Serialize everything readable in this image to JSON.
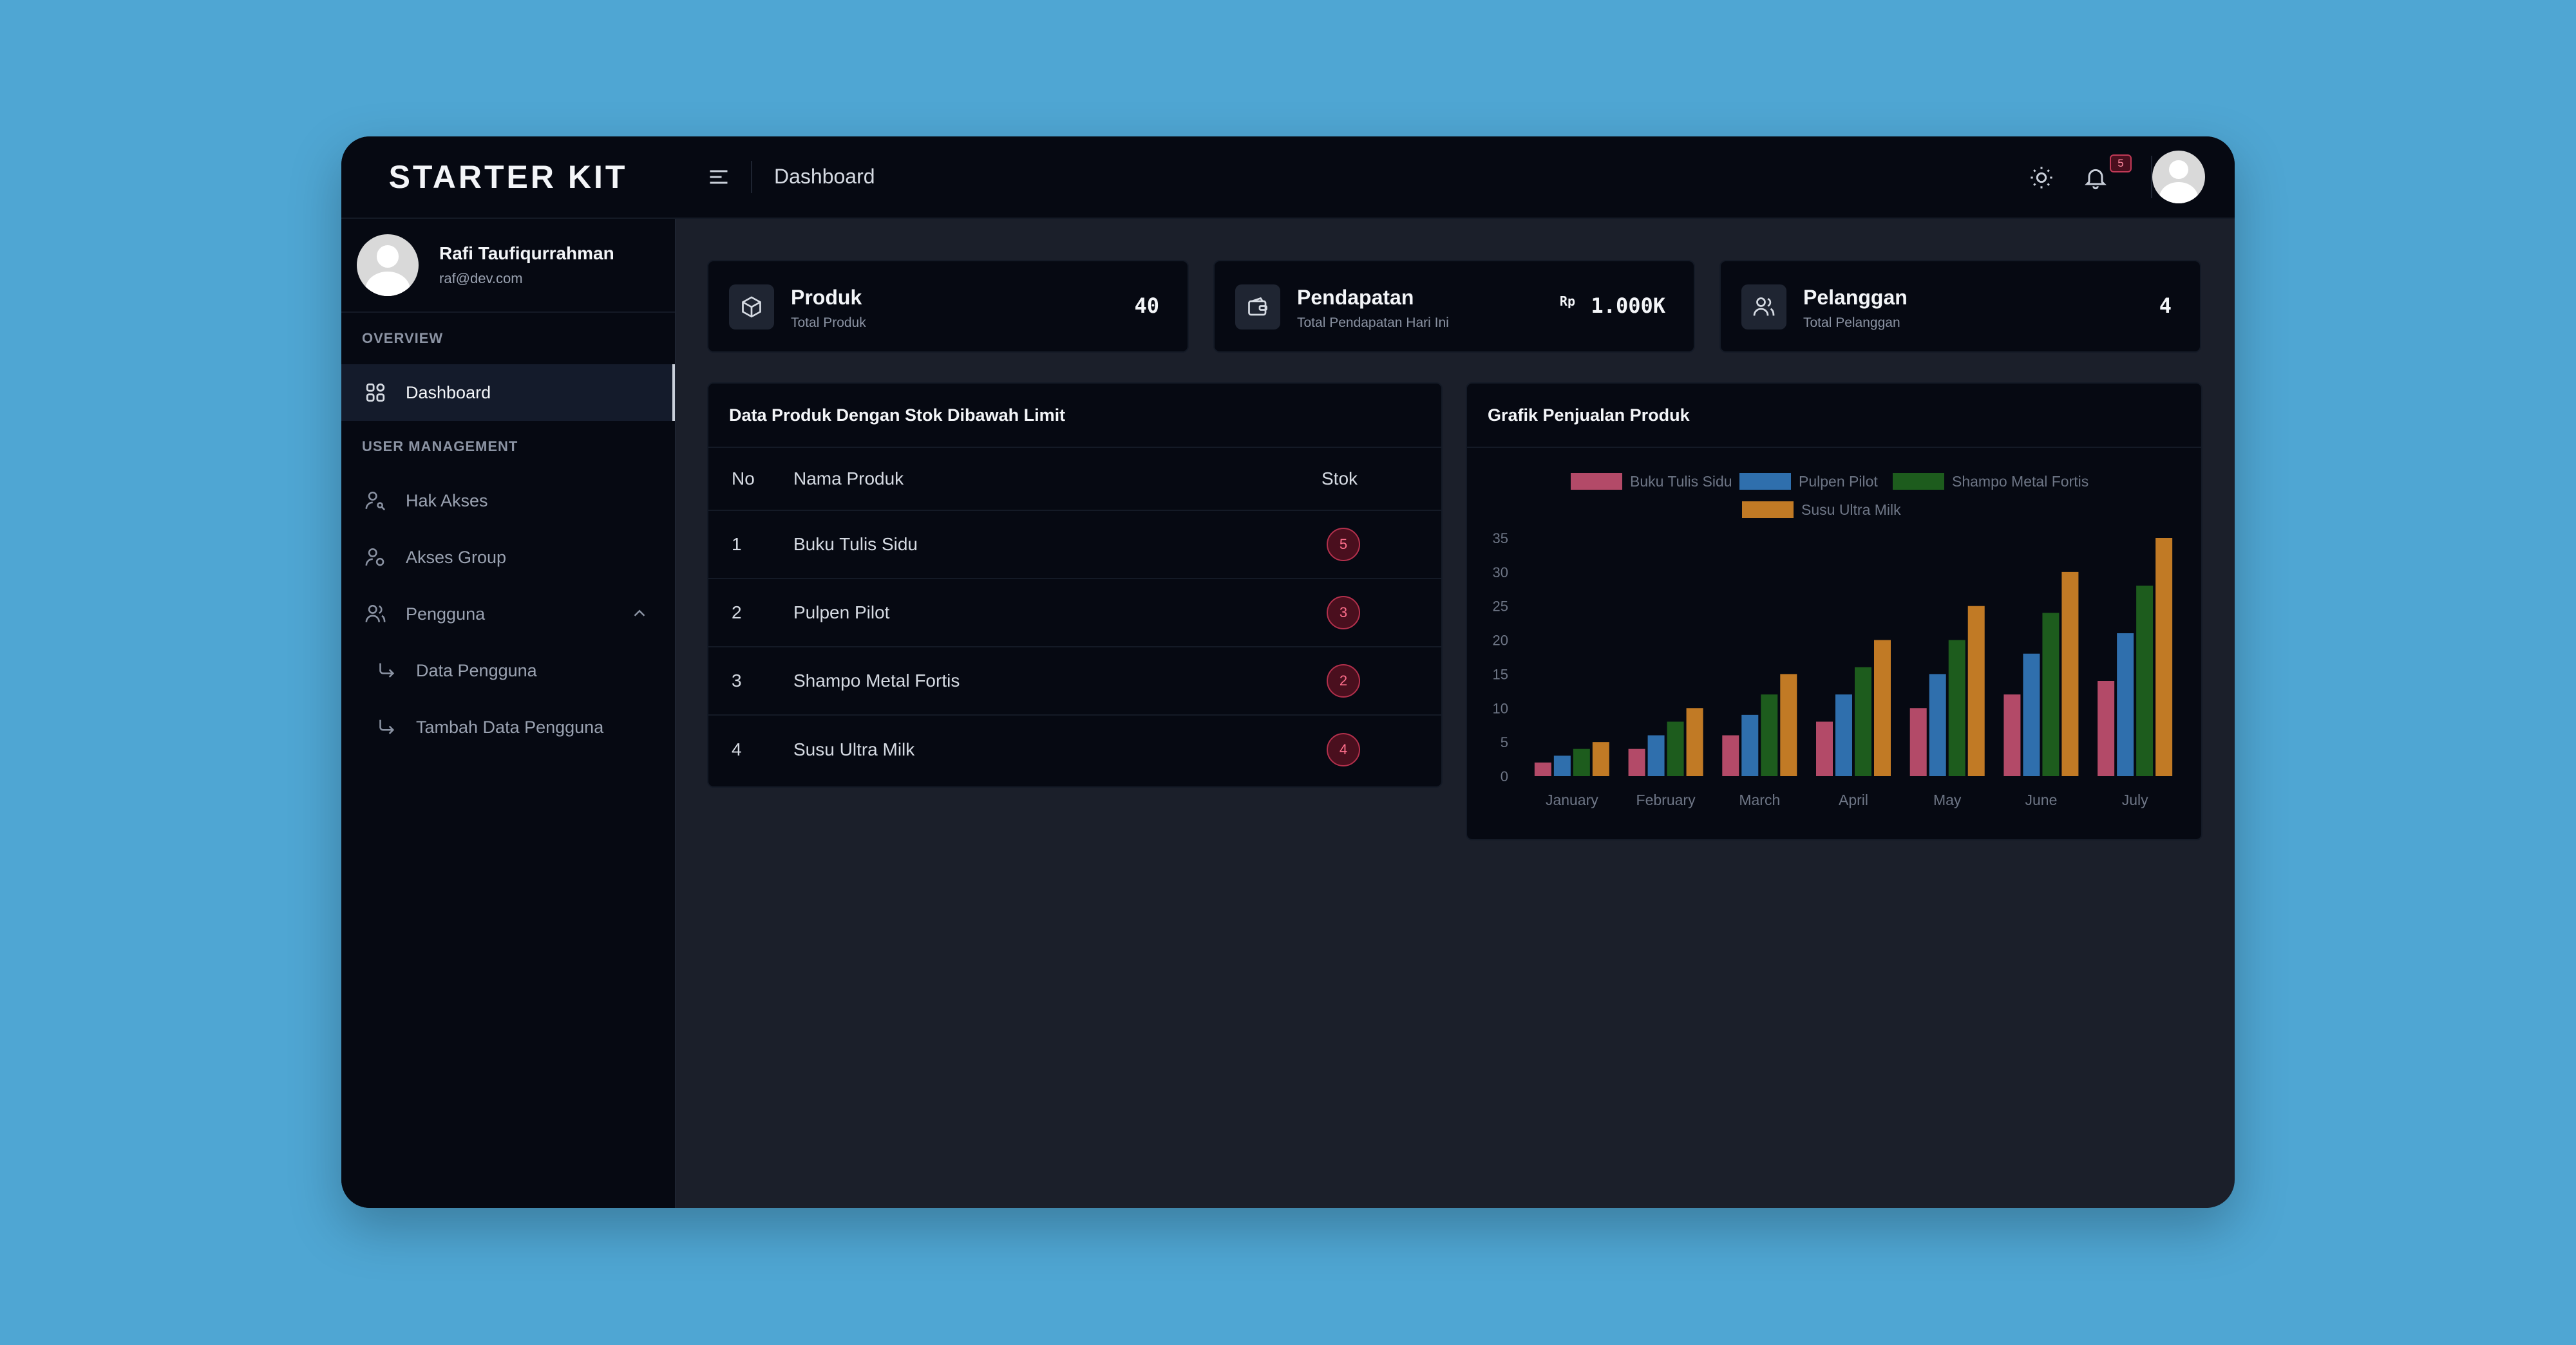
{
  "brand": "STARTER KIT",
  "user": {
    "name": "Rafi Taufiqurrahman",
    "email": "raf@dev.com"
  },
  "sidebar": {
    "overview_label": "OVERVIEW",
    "dashboard_label": "Dashboard",
    "user_mgmt_label": "USER MANAGEMENT",
    "hak_akses": "Hak Akses",
    "akses_group": "Akses Group",
    "pengguna": "Pengguna",
    "data_pengguna": "Data Pengguna",
    "tambah_pengguna": "Tambah Data Pengguna"
  },
  "header": {
    "title": "Dashboard",
    "notification_count": "5"
  },
  "stats": {
    "produk": {
      "title": "Produk",
      "subtitle": "Total Produk",
      "value": "40"
    },
    "pendapatan": {
      "title": "Pendapatan",
      "subtitle": "Total Pendapatan Hari Ini",
      "prefix": "Rp",
      "value": "1.000K"
    },
    "pelanggan": {
      "title": "Pelanggan",
      "subtitle": "Total Pelanggan",
      "value": "4"
    }
  },
  "stock_table": {
    "title": "Data Produk Dengan Stok Dibawah Limit",
    "headers": {
      "no": "No",
      "name": "Nama Produk",
      "stok": "Stok"
    },
    "rows": [
      {
        "no": "1",
        "name": "Buku Tulis Sidu",
        "stok": "5"
      },
      {
        "no": "2",
        "name": "Pulpen Pilot",
        "stok": "3"
      },
      {
        "no": "3",
        "name": "Shampo Metal Fortis",
        "stok": "2"
      },
      {
        "no": "4",
        "name": "Susu Ultra Milk",
        "stok": "4"
      }
    ]
  },
  "sales_chart": {
    "title": "Grafik Penjualan Produk"
  },
  "colors": {
    "accent_red": "#c23a57",
    "series": [
      "#b34a68",
      "#2f6fad",
      "#1d5c1d",
      "#c17a25"
    ]
  },
  "icons": {
    "menu": "menu-icon",
    "sun": "sun-icon",
    "bell": "bell-icon",
    "box": "box-icon",
    "wallet": "wallet-icon",
    "users": "users-icon"
  },
  "chart_data": {
    "type": "bar",
    "categories": [
      "January",
      "February",
      "March",
      "April",
      "May",
      "June",
      "July"
    ],
    "series": [
      {
        "name": "Buku Tulis Sidu",
        "values": [
          2,
          4,
          6,
          8,
          10,
          12,
          14
        ]
      },
      {
        "name": "Pulpen Pilot",
        "values": [
          3,
          6,
          9,
          12,
          15,
          18,
          21
        ]
      },
      {
        "name": "Shampo Metal Fortis",
        "values": [
          4,
          8,
          12,
          16,
          20,
          24,
          28
        ]
      },
      {
        "name": "Susu Ultra Milk",
        "values": [
          5,
          10,
          15,
          20,
          25,
          30,
          35
        ]
      }
    ],
    "yticks": [
      0,
      5,
      10,
      15,
      20,
      25,
      30,
      35
    ],
    "ylim": [
      0,
      35
    ],
    "legend": "top",
    "grid": false
  }
}
